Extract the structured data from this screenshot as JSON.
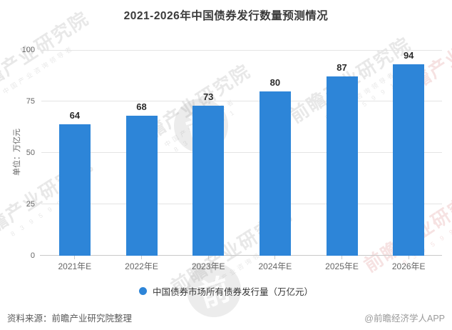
{
  "chart_data": {
    "type": "bar",
    "title": "2021-2026年中国债券发行数量预测情况",
    "ylabel": "单位：万亿元",
    "xlabel": "",
    "categories": [
      "2021年E",
      "2022年E",
      "2023年E",
      "2024年E",
      "2025年E",
      "2026年E"
    ],
    "values": [
      64,
      68,
      73,
      80,
      87,
      94
    ],
    "yticks": [
      "0",
      "25",
      "50",
      "75",
      "100"
    ],
    "ylim": [
      0,
      100
    ],
    "grid": true,
    "legend": "中国债券市场所有债券发行量（万亿元）",
    "legend_position": "bottom",
    "bar_color": "#2d85d8"
  },
  "footer": {
    "source": "资料来源：前瞻产业研究院整理",
    "credit": "@前瞻经济学人APP"
  },
  "watermark": {
    "text": "前瞻产业研究院",
    "tagline": "中国产业咨询领导者",
    "digits": "8 3 9 5 9 9 1",
    "logo_glyph": "前"
  },
  "colors": {
    "bar": "#2d85d8",
    "legend_dot": "#2d85d8",
    "grid_line": "#e4e4e4",
    "axis_line": "#c9c9c9",
    "title_text": "#3a3a3a",
    "tick_text": "#666666",
    "value_text": "#2b2b2b",
    "source_text": "#595959",
    "credit_text": "#9a9a9a"
  }
}
